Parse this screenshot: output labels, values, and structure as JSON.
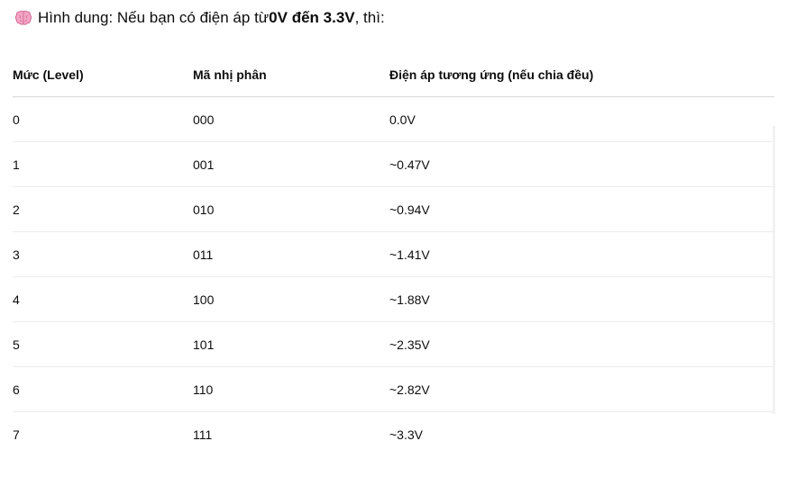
{
  "intro": {
    "icon": "brain-icon",
    "prefix": "Hình dung: Nếu bạn có điện áp từ ",
    "bold": "0V đến 3.3V",
    "suffix": ", thì:"
  },
  "table": {
    "headers": [
      "Mức (Level)",
      "Mã nhị phân",
      "Điện áp tương ứng (nếu chia đều)"
    ],
    "rows": [
      [
        "0",
        "000",
        "0.0V"
      ],
      [
        "1",
        "001",
        "~0.47V"
      ],
      [
        "2",
        "010",
        "~0.94V"
      ],
      [
        "3",
        "011",
        "~1.41V"
      ],
      [
        "4",
        "100",
        "~1.88V"
      ],
      [
        "5",
        "101",
        "~2.35V"
      ],
      [
        "6",
        "110",
        "~2.82V"
      ],
      [
        "7",
        "111",
        "~3.3V"
      ]
    ]
  }
}
